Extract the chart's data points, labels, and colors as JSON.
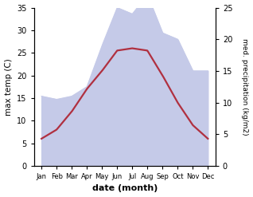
{
  "months": [
    "Jan",
    "Feb",
    "Mar",
    "Apr",
    "May",
    "Jun",
    "Jul",
    "Aug",
    "Sep",
    "Oct",
    "Nov",
    "Dec"
  ],
  "x": [
    1,
    2,
    3,
    4,
    5,
    6,
    7,
    8,
    9,
    10,
    11,
    12
  ],
  "temp_max": [
    6.0,
    8.0,
    12.0,
    17.0,
    21.0,
    25.5,
    26.0,
    25.5,
    20.0,
    14.0,
    9.0,
    6.0
  ],
  "precip": [
    11.0,
    10.5,
    11.0,
    12.5,
    19.0,
    25.0,
    24.0,
    27.0,
    21.0,
    20.0,
    15.0,
    15.0
  ],
  "temp_color": "#b03040",
  "precip_fill_color": "#c5caE8",
  "precip_line_color": "#c5caE8",
  "temp_ylim": [
    0,
    35
  ],
  "precip_ylim": [
    0,
    25
  ],
  "temp_yticks": [
    0,
    5,
    10,
    15,
    20,
    25,
    30,
    35
  ],
  "precip_yticks": [
    0,
    5,
    10,
    15,
    20,
    25
  ],
  "xlabel": "date (month)",
  "ylabel_left": "max temp (C)",
  "ylabel_right": "med. precipitation (kg/m2)",
  "background_color": "#ffffff",
  "line_width": 1.6,
  "xlim": [
    0.5,
    12.5
  ]
}
